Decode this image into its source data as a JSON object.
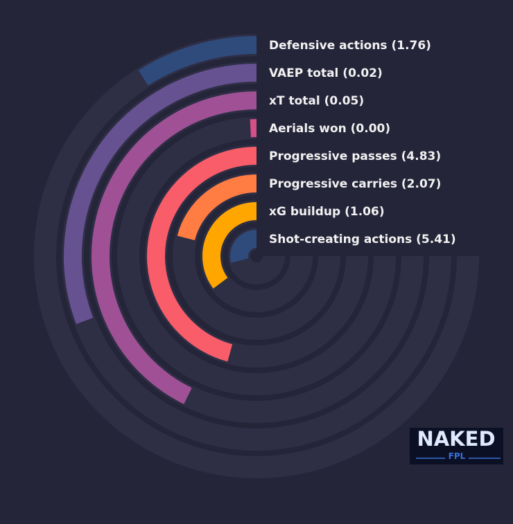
{
  "chart_data": {
    "type": "radial_bar",
    "categories": [
      "Defensive actions (1.76)",
      "VAEP total (0.02)",
      "xT total (0.05)",
      "Aerials won (0.00)",
      "Progressive passes (4.83)",
      "Progressive carries (2.07)",
      "xG buildup (1.06)",
      "Shot-creating actions (5.41)"
    ],
    "values": [
      12,
      41,
      57,
      1,
      61,
      28,
      47,
      39
    ],
    "colors": [
      "#2f4b7c",
      "#665191",
      "#a05195",
      "#d45087",
      "#f95d6a",
      "#ff7c43",
      "#ffa600",
      "#2f4b7c"
    ],
    "ylim": [
      0,
      100
    ]
  },
  "logo": {
    "top": "NAKED",
    "bottom": "FPL"
  }
}
